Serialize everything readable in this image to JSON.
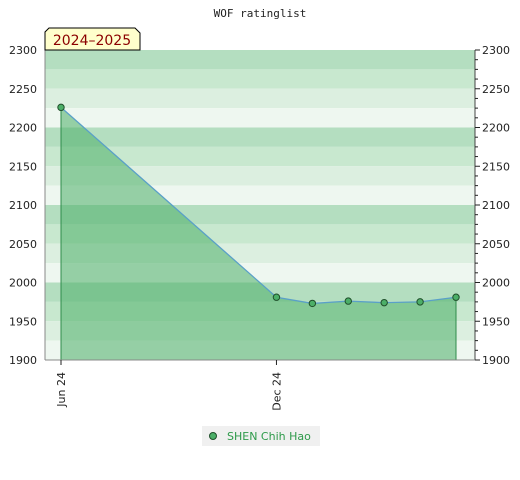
{
  "title": "WOF ratinglist",
  "season_badge": "2024–2025",
  "chart_data": {
    "type": "area",
    "title": "WOF ratinglist",
    "ylim": [
      1900,
      2300
    ],
    "yticks": [
      1900,
      1950,
      2000,
      2050,
      2100,
      2150,
      2200,
      2250,
      2300
    ],
    "x_tick_labels": [
      "Jun 24",
      "Dec 24"
    ],
    "grid": "horizontal bands",
    "legend_position": "bottom-center",
    "series": [
      {
        "name": "SHEN Chih Hao",
        "color": "#5aa0c8",
        "fill_color": "#4caf68",
        "points": [
          {
            "x": "2024-06",
            "y": 2226
          },
          {
            "x": "2024-12",
            "y": 1981
          },
          {
            "x": "2025-01",
            "y": 1973
          },
          {
            "x": "2025-02",
            "y": 1976
          },
          {
            "x": "2025-03",
            "y": 1974
          },
          {
            "x": "2025-04",
            "y": 1975
          },
          {
            "x": "2025-05",
            "y": 1981
          }
        ]
      }
    ]
  },
  "legend": {
    "label": "SHEN Chih Hao"
  }
}
